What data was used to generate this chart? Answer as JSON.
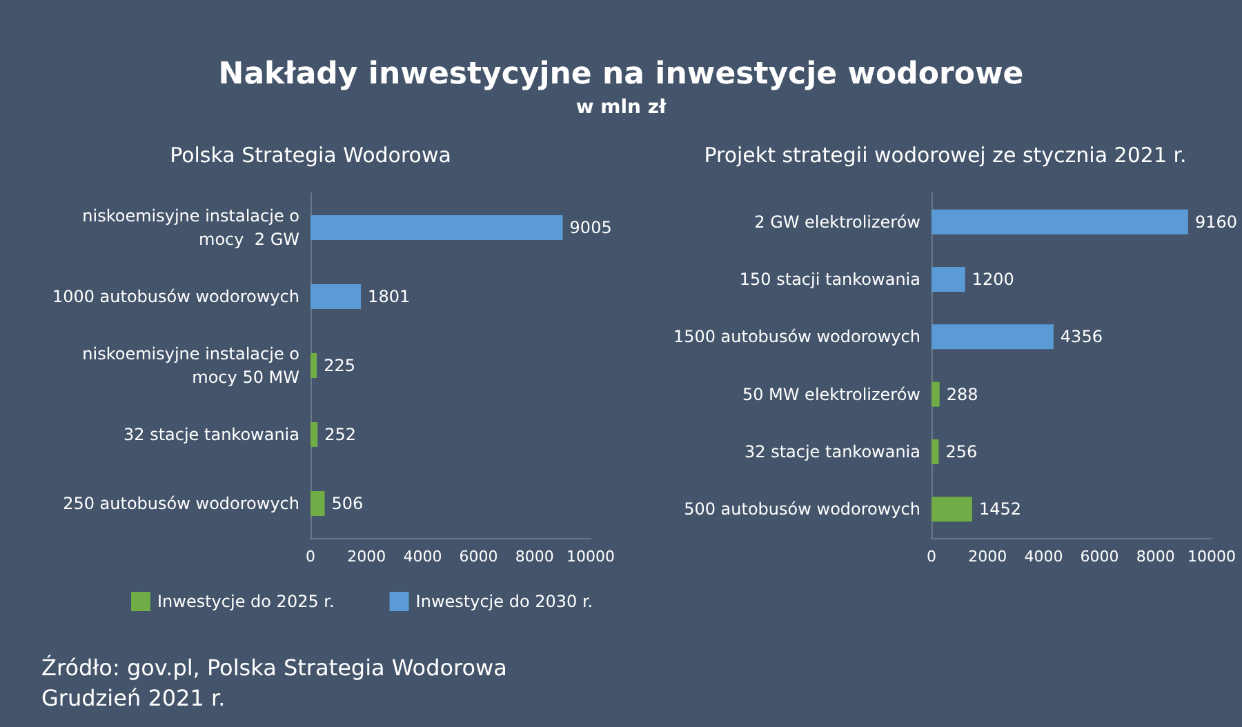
{
  "chart_data": [
    {
      "type": "other",
      "title": "Nakłady inwestycyjne na inwestycje wodorowe",
      "subtitle": "w mln zł",
      "annotations": [
        "Źródło: gov.pl, Polska Strategia Wodorowa Grudzień 2021 r."
      ]
    },
    {
      "type": "bar",
      "orientation": "horizontal",
      "stacked": true,
      "title": "Polska Strategia Wodorowa",
      "categories": [
        "niskoemisyjne instalacje o mocy  2 GW",
        "1000 autobusów wodorowych",
        "niskoemisyjne instalacje o mocy 50 MW",
        "32 stacje tankowania",
        "250 autobusów wodorowych"
      ],
      "series": [
        {
          "name": "Inwestycje do 2025 r.",
          "color": "#70ad47",
          "values": [
            null,
            null,
            225,
            252,
            506
          ]
        },
        {
          "name": "Inwestycje do 2030 r.",
          "color": "#5b9bd5",
          "values": [
            9005,
            1801,
            null,
            null,
            null
          ]
        }
      ],
      "xlim": [
        0,
        10000
      ],
      "xticks": [
        0,
        2000,
        4000,
        6000,
        8000,
        10000
      ],
      "data_labels": true,
      "legend": "bottom left"
    },
    {
      "type": "bar",
      "orientation": "horizontal",
      "stacked": true,
      "title": "Projekt strategii wodorowej ze stycznia 2021 r.",
      "categories": [
        "2 GW elektrolizerów",
        "150 stacji tankowania",
        "1500 autobusów wodorowych",
        "50 MW elektrolizerów",
        "32 stacje tankowania",
        "500 autobusów wodorowych"
      ],
      "series": [
        {
          "color": "#70ad47",
          "values": [
            null,
            null,
            null,
            288,
            256,
            1452
          ]
        },
        {
          "color": "#5b9bd5",
          "values": [
            9160,
            1200,
            4356,
            null,
            null,
            null
          ]
        }
      ],
      "xlim": [
        0,
        10000
      ],
      "xticks": [
        0,
        2000,
        4000,
        6000,
        8000,
        10000
      ],
      "data_labels": true
    }
  ]
}
